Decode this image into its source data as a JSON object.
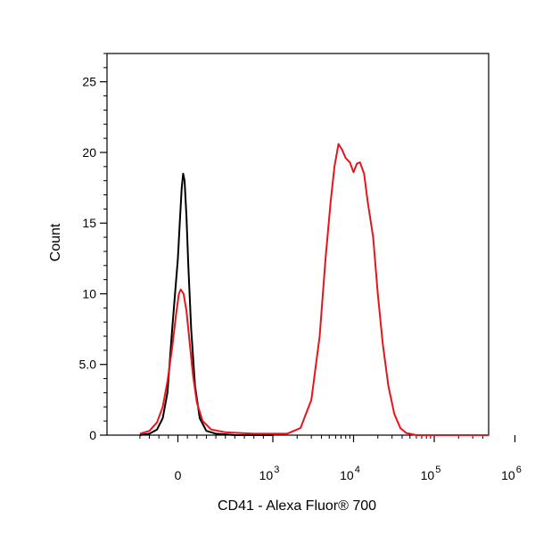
{
  "chart_data": {
    "type": "line",
    "title": "",
    "xlabel": "CD41 - Alexa Fluor® 700",
    "ylabel": "Count",
    "x_scale": "biexponential (linear near 0, log above)",
    "x_ticks": [
      {
        "label": "0",
        "sup": ""
      },
      {
        "label": "10",
        "sup": "3"
      },
      {
        "label": "10",
        "sup": "4"
      },
      {
        "label": "10",
        "sup": "5"
      },
      {
        "label": "10",
        "sup": "6"
      }
    ],
    "y_ticks": [
      "0",
      "5.0",
      "10",
      "15",
      "20",
      "25"
    ],
    "ylim": [
      0,
      27
    ],
    "grid": false,
    "legend": "none",
    "series": [
      {
        "color": "#000000",
        "points": [
          [
            -400,
            0
          ],
          [
            -300,
            0.1
          ],
          [
            -220,
            0.4
          ],
          [
            -160,
            1.2
          ],
          [
            -110,
            3
          ],
          [
            -60,
            7.5
          ],
          [
            -30,
            10
          ],
          [
            0,
            12.5
          ],
          [
            20,
            15
          ],
          [
            40,
            17.5
          ],
          [
            55,
            18.5
          ],
          [
            70,
            18
          ],
          [
            90,
            15.5
          ],
          [
            110,
            12
          ],
          [
            140,
            7.5
          ],
          [
            180,
            3.5
          ],
          [
            230,
            1.2
          ],
          [
            300,
            0.3
          ],
          [
            400,
            0.1
          ],
          [
            600,
            0
          ],
          [
            1000,
            0
          ]
        ]
      },
      {
        "color": "#e8141c",
        "points": [
          [
            -400,
            0.1
          ],
          [
            -300,
            0.3
          ],
          [
            -220,
            0.9
          ],
          [
            -160,
            2
          ],
          [
            -110,
            3.8
          ],
          [
            -60,
            6.2
          ],
          [
            -20,
            8.5
          ],
          [
            10,
            10
          ],
          [
            30,
            10.3
          ],
          [
            60,
            10
          ],
          [
            90,
            8.8
          ],
          [
            120,
            6.8
          ],
          [
            160,
            4.2
          ],
          [
            200,
            2.3
          ],
          [
            260,
            1
          ],
          [
            350,
            0.4
          ],
          [
            500,
            0.2
          ],
          [
            800,
            0.1
          ],
          [
            1500,
            0.1
          ],
          [
            2200,
            0.5
          ],
          [
            3000,
            2.5
          ],
          [
            3800,
            7
          ],
          [
            4500,
            12.5
          ],
          [
            5200,
            16.5
          ],
          [
            5800,
            19
          ],
          [
            6500,
            20.6
          ],
          [
            7200,
            20.2
          ],
          [
            8000,
            19.6
          ],
          [
            9000,
            19.3
          ],
          [
            10000,
            18.6
          ],
          [
            11000,
            19.2
          ],
          [
            12000,
            19.3
          ],
          [
            13500,
            18.5
          ],
          [
            15000,
            16.5
          ],
          [
            17500,
            14
          ],
          [
            20000,
            10
          ],
          [
            23000,
            6.5
          ],
          [
            27000,
            3.5
          ],
          [
            32000,
            1.5
          ],
          [
            38000,
            0.5
          ],
          [
            45000,
            0.15
          ],
          [
            60000,
            0
          ],
          [
            100000,
            0
          ],
          [
            1000000,
            0
          ]
        ]
      }
    ]
  }
}
